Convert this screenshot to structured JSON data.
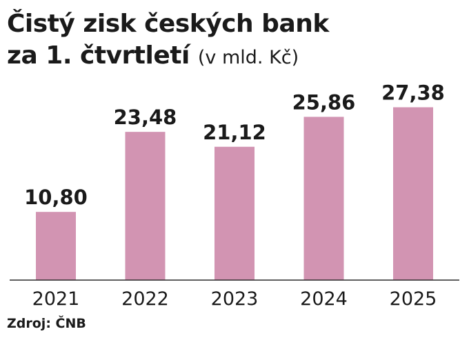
{
  "header": {
    "title_line1": "Čistý zisk českých bank",
    "title_line2": "za 1. čtvrtletí",
    "unit": "(v mld. Kč)"
  },
  "source": "Zdroj: ČNB",
  "colors": {
    "bar": "#d294b2",
    "axis": "#2a2a2a",
    "text": "#1a1a1a"
  },
  "chart_data": {
    "type": "bar",
    "categories": [
      "2021",
      "2022",
      "2023",
      "2024",
      "2025"
    ],
    "values": [
      10.8,
      23.48,
      21.12,
      25.86,
      27.38
    ],
    "value_labels": [
      "10,80",
      "23,48",
      "21,12",
      "25,86",
      "27,38"
    ],
    "title": "Čistý zisk českých bank za 1. čtvrtletí",
    "ylabel": "(v mld. Kč)",
    "ylim": [
      0,
      32
    ],
    "grid": false,
    "legend": "none"
  }
}
